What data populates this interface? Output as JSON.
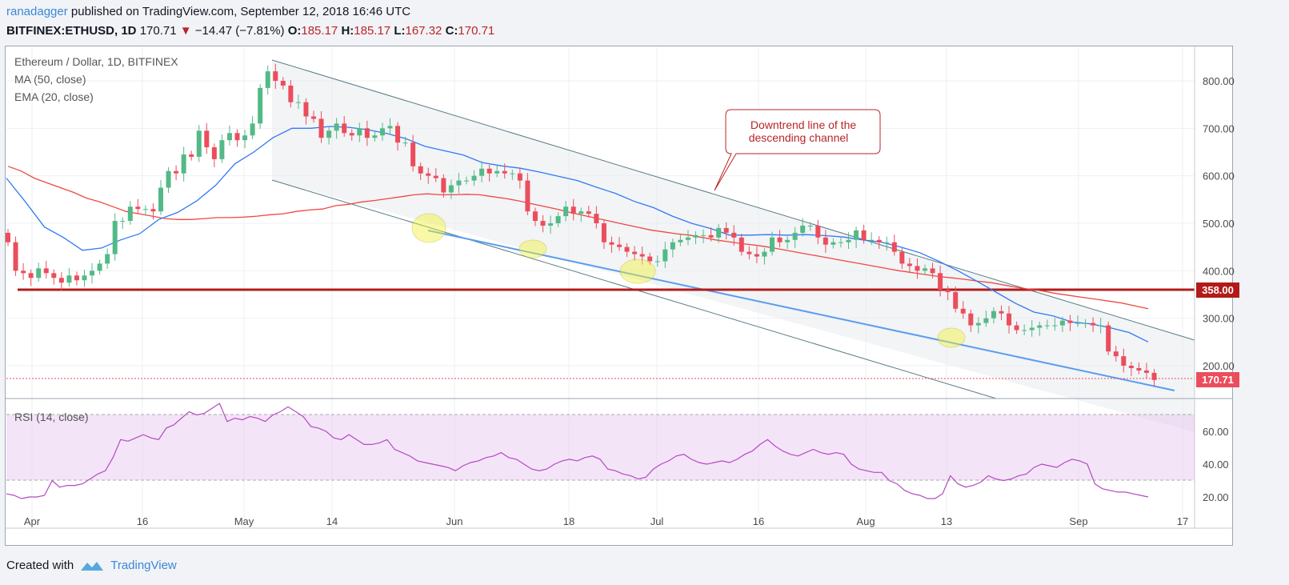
{
  "header": {
    "publisher": "ranadagger",
    "published_text": "published on TradingView.com, September 12, 2018 16:46 UTC",
    "symbol": "BITFINEX:ETHUSD, 1D",
    "last": "170.71",
    "change_arrow": "▼",
    "change": "−14.47 (−7.81%)",
    "o_label": "O:",
    "o": "185.17",
    "h_label": "H:",
    "h": "185.17",
    "l_label": "L:",
    "l": "167.32",
    "c_label": "C:",
    "c": "170.71"
  },
  "legend": {
    "title": "Ethereum / Dollar, 1D, BITFINEX",
    "ma": "MA (50, close)",
    "ema": "EMA (20, close)",
    "rsi": "RSI (14, close)"
  },
  "annotation": {
    "line1": "Downtrend line of the",
    "line2": "descending channel"
  },
  "price_tags": {
    "support": "358.00",
    "last": "170.71"
  },
  "footer": {
    "created_with": "Created with",
    "brand": "TradingView"
  },
  "colors": {
    "up": "#53b987",
    "down": "#eb4d5c",
    "ma": "#f0483f",
    "ema": "#3179f5",
    "rsi": "#b449c3",
    "support": "#b31b1b",
    "trendline": "#5b9cf0",
    "channel": "#587d86"
  },
  "chart_data": [
    {
      "type": "candlestick",
      "title": "Ethereum / Dollar, 1D, BITFINEX",
      "y_ticks": [
        200,
        300,
        400,
        500,
        600,
        700,
        800
      ],
      "ylim": [
        130,
        870
      ],
      "x_ticks": [
        "Apr",
        "16",
        "May",
        "14",
        "Jun",
        "18",
        "Jul",
        "16",
        "Aug",
        "13",
        "Sep",
        "17"
      ],
      "start_date": "2018-03-28",
      "ohlc_close": [
        460,
        400,
        395,
        385,
        405,
        395,
        385,
        375,
        390,
        380,
        390,
        400,
        415,
        435,
        505,
        505,
        535,
        530,
        530,
        525,
        575,
        610,
        605,
        645,
        640,
        695,
        660,
        635,
        675,
        690,
        675,
        685,
        710,
        785,
        820,
        800,
        790,
        755,
        755,
        725,
        720,
        680,
        695,
        710,
        690,
        685,
        700,
        680,
        685,
        700,
        705,
        670,
        670,
        620,
        605,
        600,
        595,
        565,
        580,
        590,
        590,
        600,
        615,
        605,
        610,
        605,
        605,
        590,
        525,
        505,
        495,
        500,
        515,
        535,
        520,
        525,
        520,
        500,
        460,
        455,
        450,
        440,
        435,
        430,
        420,
        420,
        445,
        460,
        465,
        470,
        475,
        475,
        470,
        490,
        480,
        470,
        440,
        435,
        430,
        440,
        470,
        460,
        465,
        480,
        495,
        495,
        470,
        455,
        460,
        460,
        465,
        485,
        465,
        465,
        460,
        460,
        440,
        415,
        410,
        400,
        405,
        395,
        360,
        355,
        320,
        310,
        285,
        290,
        300,
        315,
        310,
        285,
        275,
        275,
        280,
        285,
        285,
        285,
        295,
        290,
        290,
        290,
        285,
        285,
        230,
        220,
        200,
        195,
        190,
        185,
        170
      ],
      "ma50": [
        620,
        610,
        595,
        585,
        575,
        565,
        553,
        545,
        535,
        525,
        520,
        515,
        510,
        508,
        508,
        510,
        512,
        512,
        513,
        515,
        518,
        520,
        525,
        528,
        530,
        537,
        540,
        545,
        548,
        552,
        556,
        560,
        562,
        560,
        560,
        561,
        560,
        556,
        552,
        547,
        541,
        535,
        529,
        522,
        516,
        510,
        504,
        498,
        492,
        486,
        482,
        478,
        475,
        470,
        465,
        461,
        457,
        454,
        450,
        445,
        440,
        435,
        430,
        425,
        420,
        415,
        410,
        405,
        400,
        396,
        392,
        388,
        385,
        382,
        378,
        375,
        370,
        365,
        361,
        357,
        352,
        348,
        344,
        340,
        336,
        332,
        326,
        320
      ],
      "ema20": [
        595,
        545,
        492,
        470,
        443,
        448,
        465,
        478,
        508,
        523,
        547,
        580,
        625,
        650,
        680,
        700,
        700,
        704,
        702,
        697,
        689,
        678,
        662,
        653,
        644,
        628,
        621,
        616,
        608,
        599,
        590,
        576,
        563,
        546,
        533,
        515,
        500,
        489,
        475,
        475,
        476,
        475,
        476,
        474,
        471,
        465,
        460,
        450,
        438,
        420,
        400,
        378,
        355,
        332,
        313,
        305,
        292,
        288,
        280,
        270,
        250
      ],
      "support_level": 358.0,
      "last_price": 170.71,
      "annotation": "Downtrend line of the descending channel"
    },
    {
      "type": "line",
      "title": "RSI (14, close)",
      "y_ticks": [
        20,
        40,
        60
      ],
      "ylim": [
        12,
        80
      ],
      "bands": [
        30,
        70
      ],
      "values": [
        22,
        21,
        19,
        20,
        20,
        21,
        30,
        26,
        27,
        27,
        28,
        31,
        34,
        36,
        44,
        55,
        54,
        56,
        58,
        56,
        55,
        62,
        64,
        68,
        72,
        70,
        71,
        74,
        77,
        66,
        68,
        67,
        69,
        68,
        66,
        70,
        72,
        75,
        72,
        69,
        63,
        62,
        60,
        56,
        55,
        58,
        55,
        52,
        52,
        53,
        55,
        49,
        47,
        45,
        42,
        41,
        40,
        39,
        38,
        36,
        39,
        41,
        42,
        44,
        45,
        47,
        44,
        43,
        40,
        37,
        36,
        37,
        40,
        42,
        43,
        42,
        44,
        45,
        43,
        37,
        36,
        34,
        33,
        31,
        32,
        37,
        40,
        42,
        45,
        46,
        43,
        41,
        40,
        41,
        42,
        41,
        43,
        46,
        48,
        52,
        55,
        51,
        48,
        46,
        45,
        47,
        49,
        47,
        46,
        47,
        46,
        40,
        37,
        36,
        35,
        35,
        30,
        28,
        24,
        22,
        21,
        19,
        19,
        22,
        33,
        28,
        26,
        27,
        29,
        33,
        31,
        30,
        31,
        33,
        34,
        38,
        40,
        39,
        38,
        41,
        43,
        42,
        40,
        28,
        25,
        24,
        23,
        23,
        22,
        21,
        20
      ]
    }
  ]
}
